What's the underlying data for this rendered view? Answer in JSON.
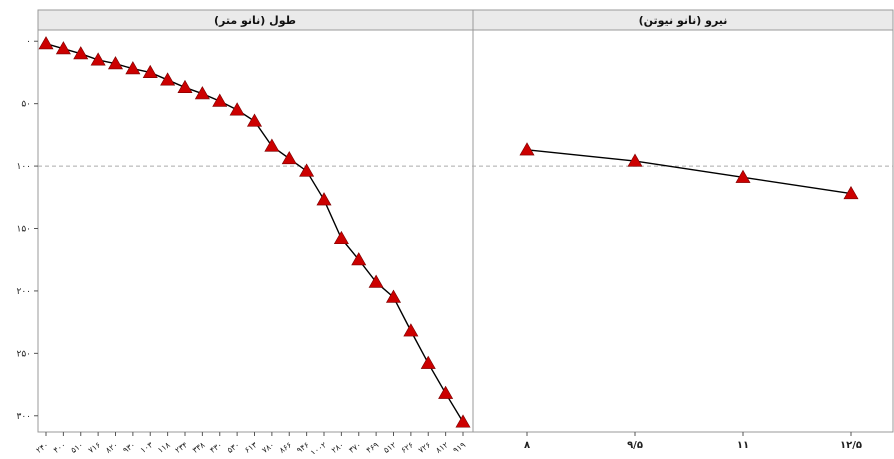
{
  "chart_data": {
    "type": "line",
    "reference_y": 100,
    "yticks": [
      0,
      50,
      100,
      150,
      200,
      250,
      300
    ],
    "ytick_labels": [
      "۰",
      "۵۰",
      "۱۰۰",
      "۱۵۰",
      "۲۰۰",
      "۲۵۰",
      "۳۰۰"
    ],
    "ylim": [
      -9,
      313
    ],
    "y_reversed": true,
    "colors": {
      "marker": "#cc0000",
      "line": "#000000",
      "reference": "#aaaaaa",
      "frame": "#999999",
      "header_bg": "#eaeaea"
    },
    "panels": [
      {
        "title": "طول (نانو متر)",
        "x_labels": [
          "۲۴۰",
          "۴۰۰",
          "۵۱۰",
          "۷۱۶",
          "۸۲۰",
          "۹۳۰",
          "۱۰۳",
          "۱۱۸",
          "۲۳۴",
          "۳۳۸",
          "۴۳۰",
          "۵۳۰",
          "۶۱۳",
          "۷۸۰",
          "۸۶۶",
          "۹۴۶",
          "۱۰۰۲",
          "۲۸۰",
          "۳۷۰",
          "۴۶۹",
          "۵۱۲",
          "۶۲۶",
          "۷۲۶",
          "۸۱۲",
          "۹۱۹"
        ],
        "series": [
          {
            "values": [
              2,
              6,
              10,
              15,
              18,
              22,
              25,
              31,
              37,
              42,
              48,
              55,
              64,
              84,
              94,
              104,
              127,
              158,
              175,
              193,
              205,
              232,
              258,
              282,
              305
            ]
          }
        ]
      },
      {
        "title": "نیرو (نانو نیوتن)",
        "x_labels": [
          "۸",
          "۹/۵",
          "۱۱",
          "۱۲/۵"
        ],
        "series": [
          {
            "values": [
              87,
              96,
              109,
              122
            ]
          }
        ]
      }
    ]
  }
}
